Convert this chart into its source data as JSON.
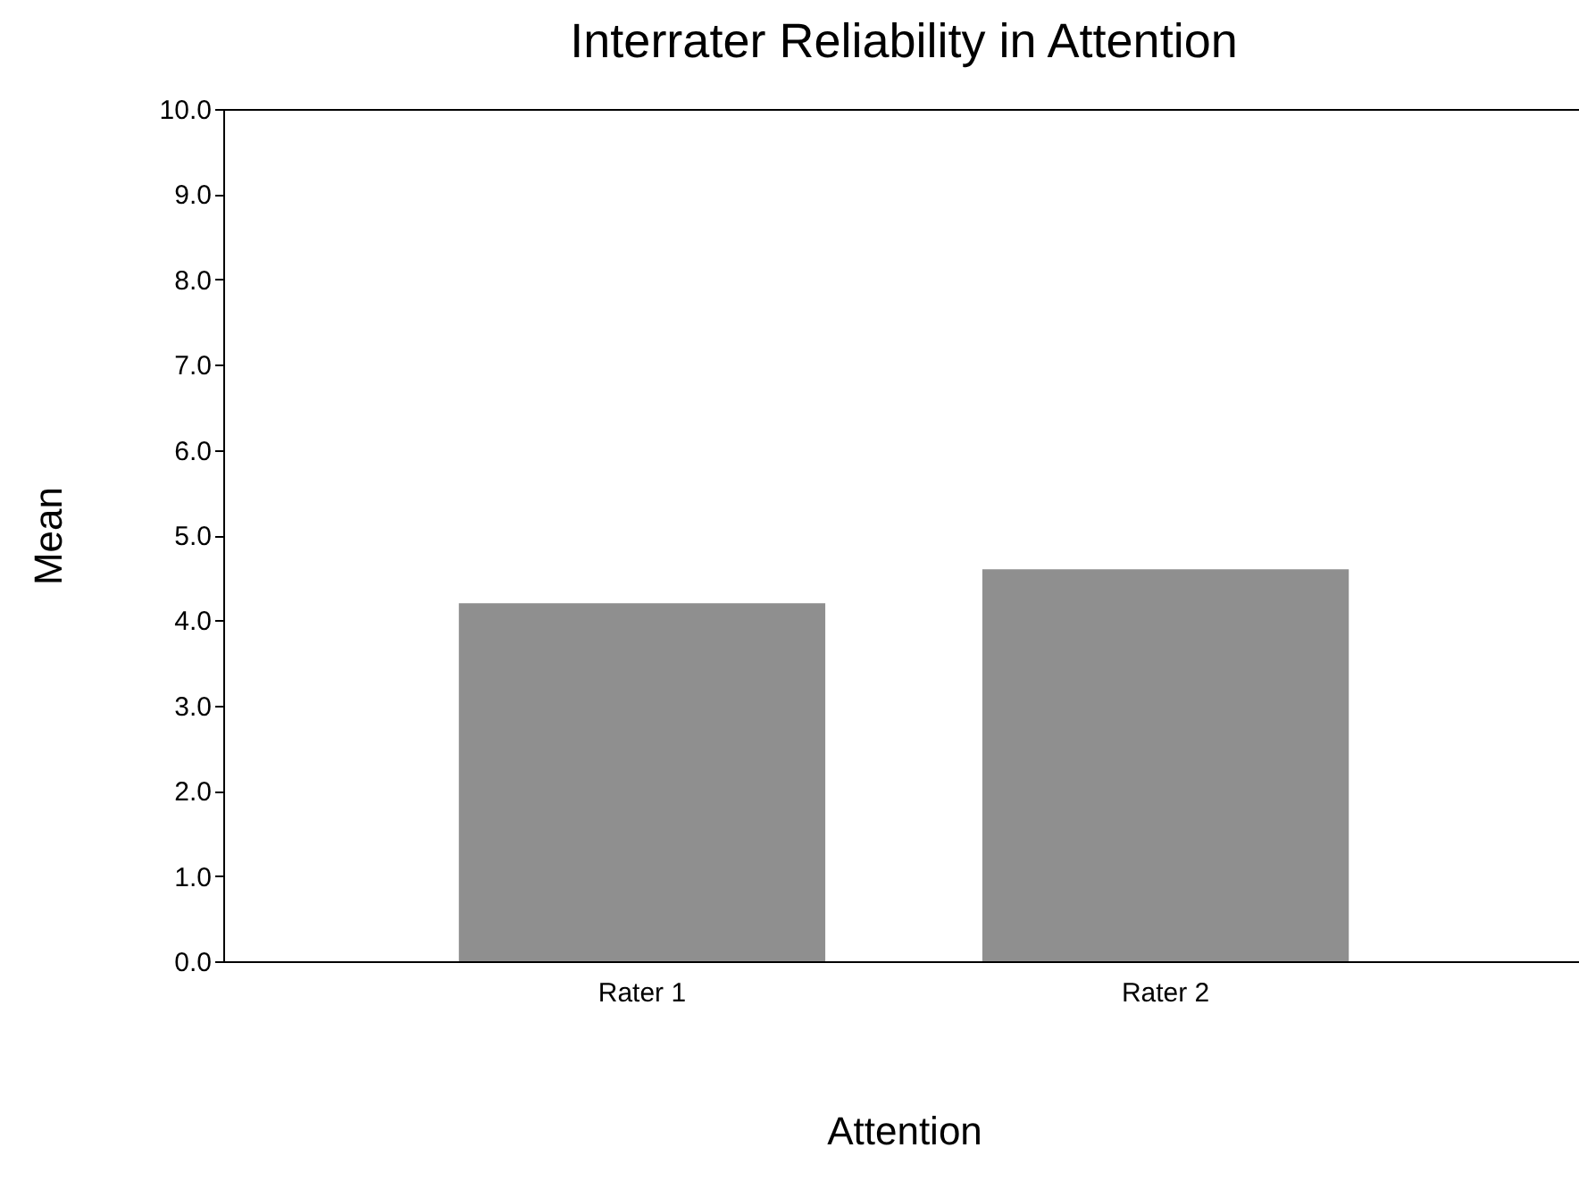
{
  "chart_data": {
    "type": "bar",
    "title": "Interrater Reliability in Attention",
    "xlabel": "Attention",
    "ylabel": "Mean",
    "categories": [
      "Rater 1",
      "Rater 2"
    ],
    "values": [
      4.2,
      4.6
    ],
    "color": "#8f8f8f",
    "ylim": [
      0,
      10
    ],
    "yticks": [
      {
        "value": 0,
        "label": "0.0"
      },
      {
        "value": 1,
        "label": "1.0"
      },
      {
        "value": 2,
        "label": "2.0"
      },
      {
        "value": 3,
        "label": "3.0"
      },
      {
        "value": 4,
        "label": "4.0"
      },
      {
        "value": 5,
        "label": "5.0"
      },
      {
        "value": 6,
        "label": "6.0"
      },
      {
        "value": 7,
        "label": "7.0"
      },
      {
        "value": 8,
        "label": "8.0"
      },
      {
        "value": 9,
        "label": "9.0"
      },
      {
        "value": 10,
        "label": "10.0"
      }
    ],
    "grid": false
  }
}
